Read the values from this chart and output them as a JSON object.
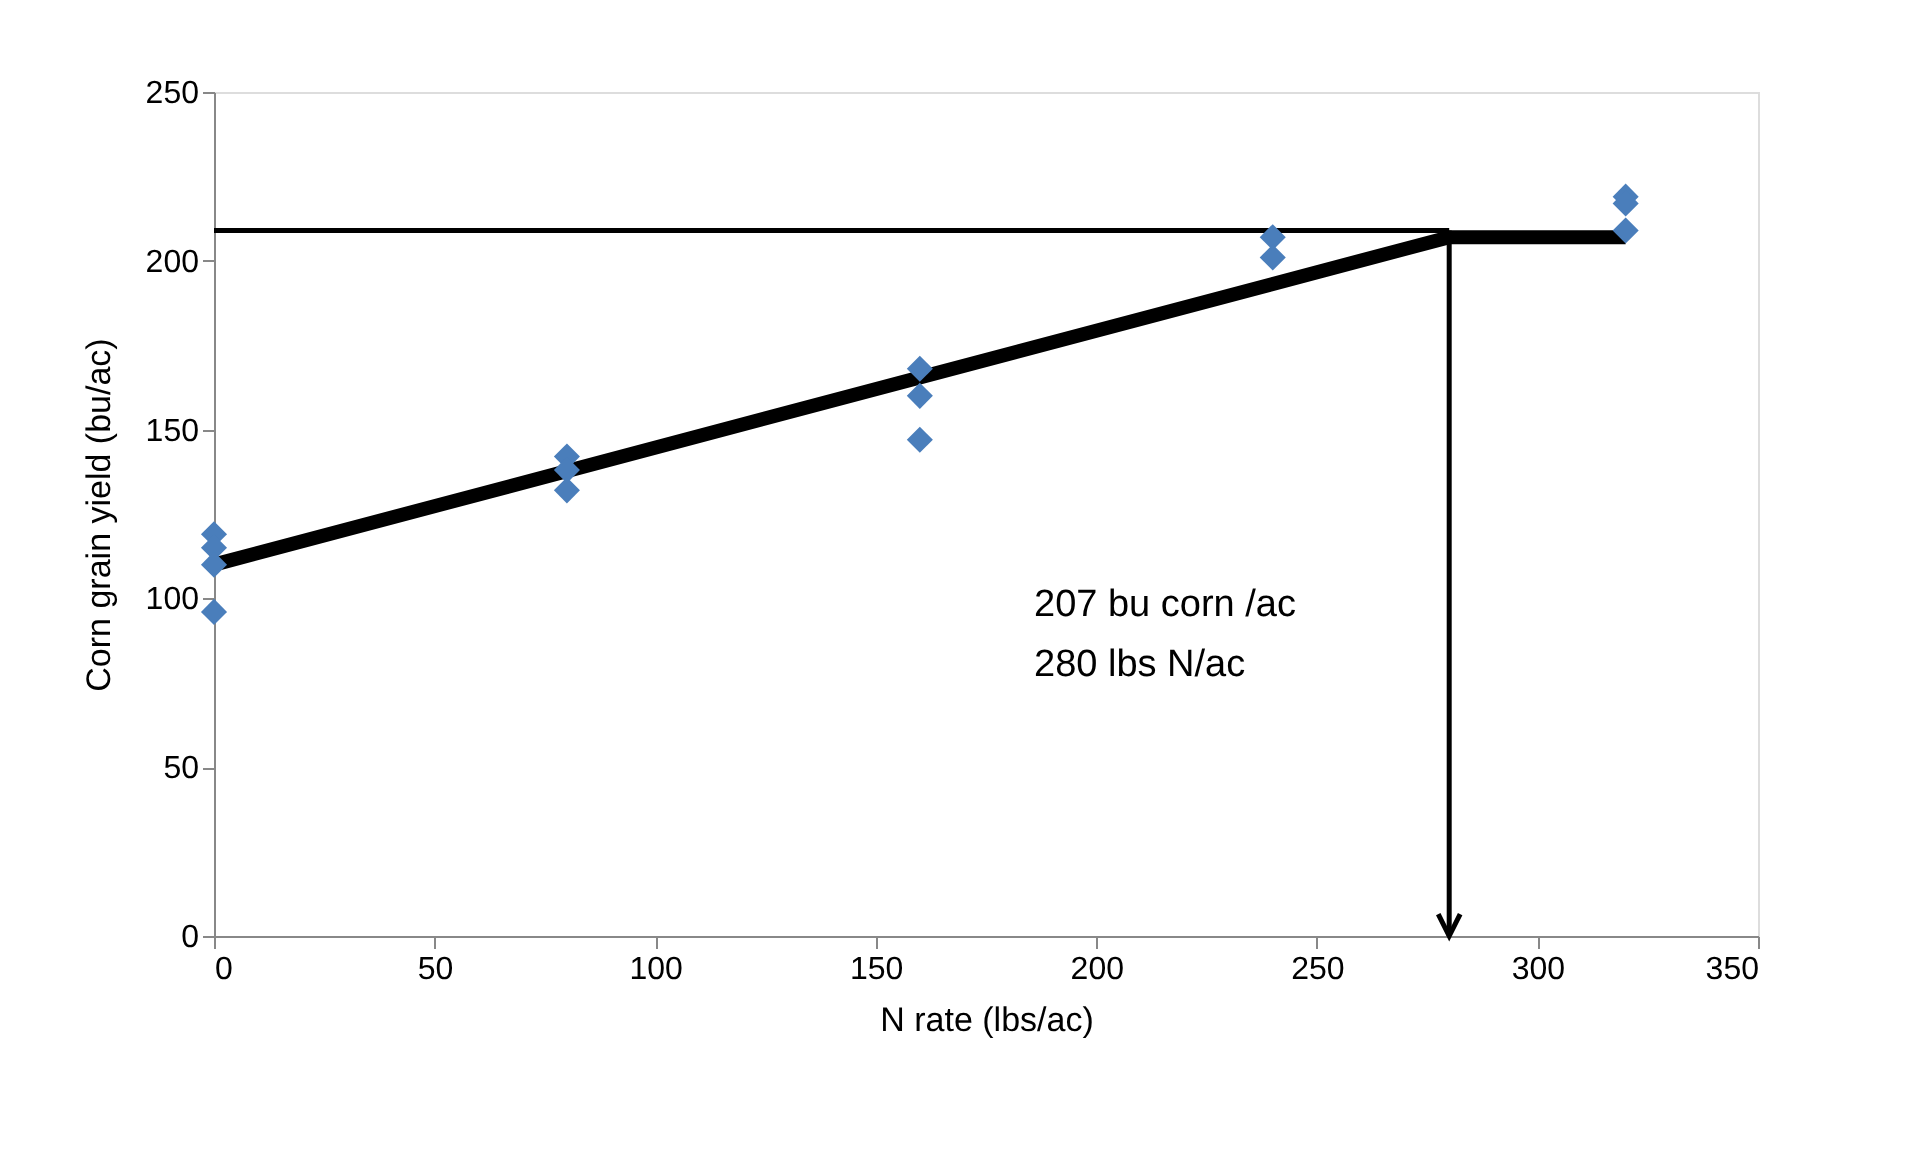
{
  "chart_data": {
    "type": "scatter",
    "xlabel": "N rate (lbs/ac)",
    "ylabel": "Corn grain yield (bu/ac)",
    "xlim": [
      0,
      350
    ],
    "xticks": [
      0,
      50,
      100,
      150,
      200,
      250,
      300,
      350
    ],
    "ylim": [
      0,
      250
    ],
    "yticks": [
      0,
      50,
      100,
      150,
      200,
      250
    ],
    "grid": false,
    "series": [
      {
        "type": "scatter",
        "marker": "diamond",
        "color": "#4a7ebb",
        "x": [
          0,
          0,
          0,
          0,
          80,
          80,
          80,
          160,
          160,
          160,
          240,
          240,
          320,
          320,
          320
        ],
        "values": [
          119,
          115,
          110,
          96,
          142,
          138,
          132,
          168,
          160,
          147,
          207,
          201,
          219,
          217,
          209
        ]
      },
      {
        "type": "line",
        "color": "#000000",
        "x": [
          0,
          280,
          320
        ],
        "values": [
          110,
          207,
          207
        ]
      },
      {
        "type": "line",
        "color": "#000000",
        "x": [
          0,
          280
        ],
        "values": [
          209,
          209
        ]
      }
    ],
    "ref_lines": [
      {
        "axis": "x",
        "value": 280,
        "color": "#000000",
        "line_style": "solid"
      }
    ],
    "annotations": [
      "207 bu corn /ac",
      "280 lbs N/ac"
    ]
  }
}
